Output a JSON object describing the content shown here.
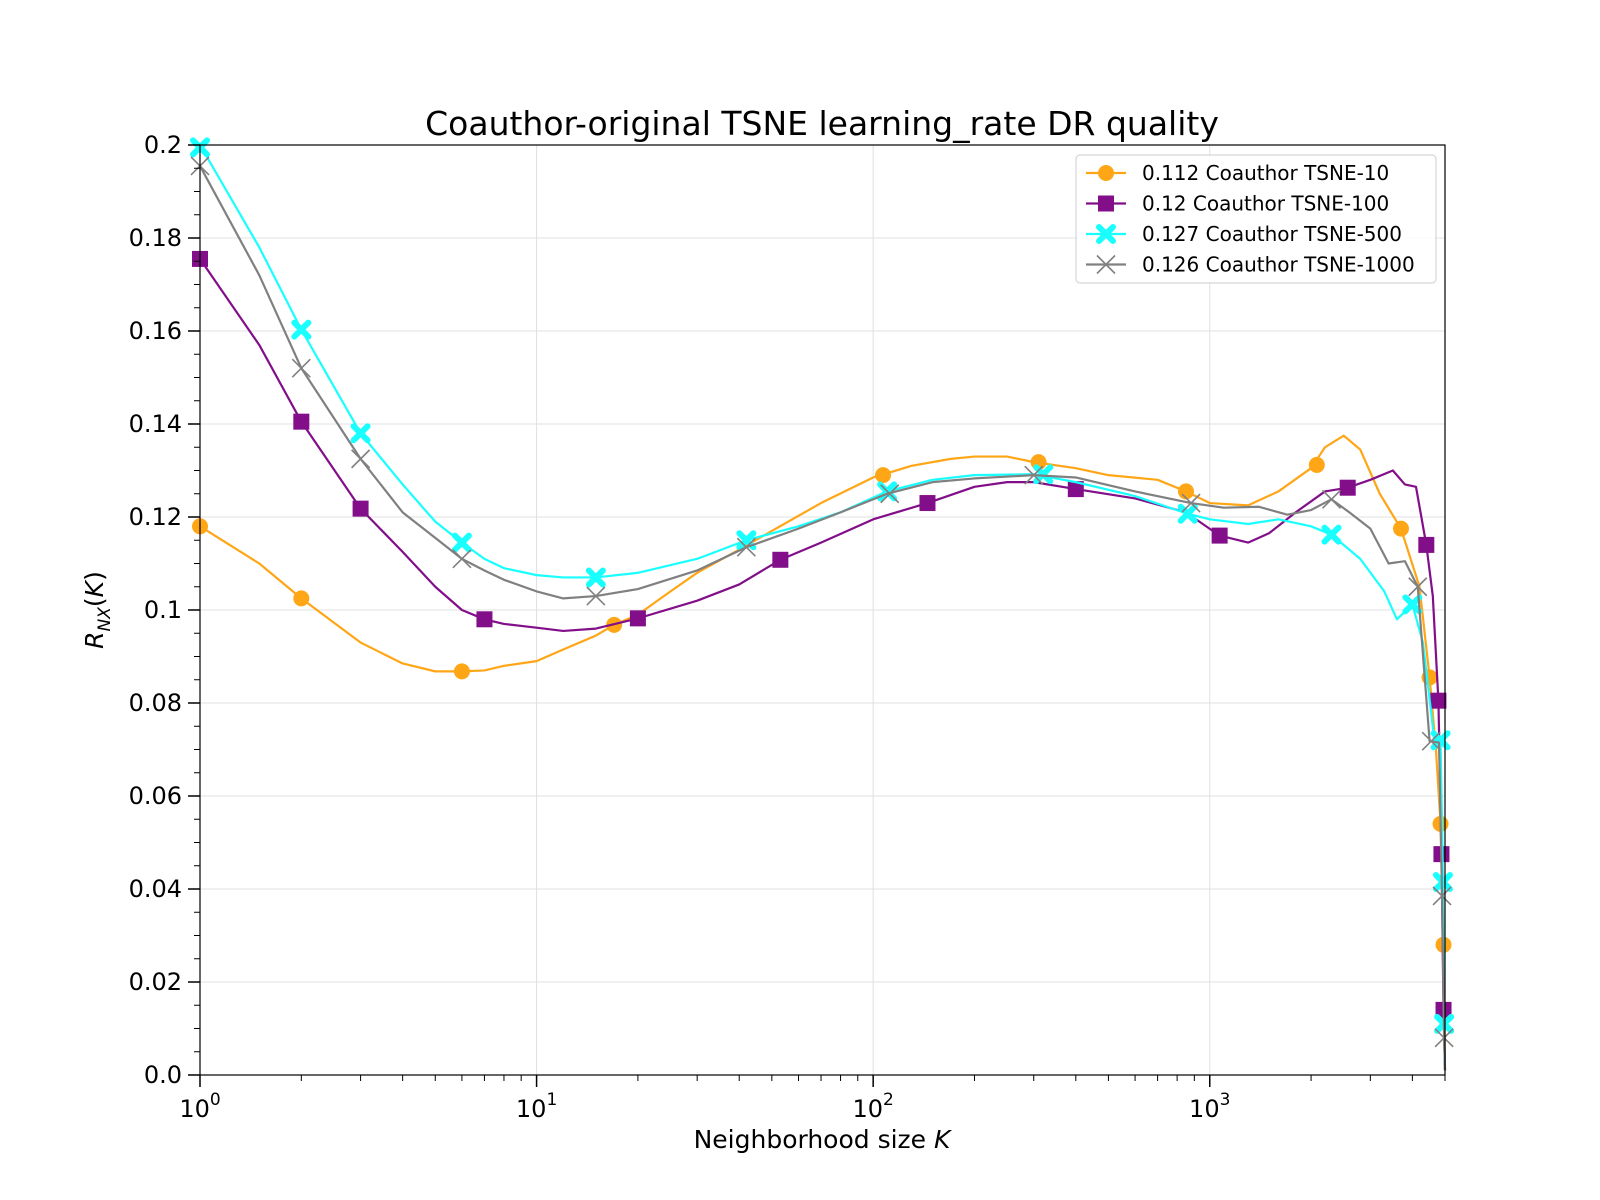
{
  "chart_data": {
    "type": "line",
    "title": "Coauthor-original TSNE learning_rate DR quality",
    "xlabel": "Neighborhood size K",
    "ylabel": "R_NX(K)",
    "x_scale": "log",
    "xlim": [
      1,
      5000
    ],
    "ylim": [
      0,
      0.2
    ],
    "x_ticks": [
      1,
      10,
      100,
      1000
    ],
    "x_tick_labels": [
      {
        "base": "10",
        "exp": "0"
      },
      {
        "base": "10",
        "exp": "1"
      },
      {
        "base": "10",
        "exp": "2"
      },
      {
        "base": "10",
        "exp": "3"
      }
    ],
    "y_ticks": [
      "0.0",
      "0.02",
      "0.04",
      "0.06",
      "0.08",
      "0.1",
      "0.12",
      "0.14",
      "0.16",
      "0.18",
      "0.2"
    ],
    "grid": true,
    "legend_position": "top-right",
    "series": [
      {
        "name": "0.112 Coauthor TSNE-10",
        "color": "#ffa616",
        "marker": "circle",
        "points": [
          [
            1,
            0.118
          ],
          [
            1.5,
            0.11
          ],
          [
            2,
            0.1025
          ],
          [
            3,
            0.093
          ],
          [
            4,
            0.0885
          ],
          [
            5,
            0.0868
          ],
          [
            6,
            0.0868
          ],
          [
            7,
            0.087
          ],
          [
            8,
            0.088
          ],
          [
            10,
            0.089
          ],
          [
            12,
            0.0915
          ],
          [
            15,
            0.0945
          ],
          [
            17,
            0.0968
          ],
          [
            20,
            0.099
          ],
          [
            25,
            0.104
          ],
          [
            30,
            0.108
          ],
          [
            40,
            0.113
          ],
          [
            50,
            0.117
          ],
          [
            70,
            0.123
          ],
          [
            100,
            0.1285
          ],
          [
            130,
            0.131
          ],
          [
            170,
            0.1325
          ],
          [
            200,
            0.133
          ],
          [
            250,
            0.133
          ],
          [
            300,
            0.1318
          ],
          [
            400,
            0.1305
          ],
          [
            500,
            0.129
          ],
          [
            700,
            0.128
          ],
          [
            850,
            0.1255
          ],
          [
            1000,
            0.123
          ],
          [
            1300,
            0.1225
          ],
          [
            1600,
            0.1255
          ],
          [
            2000,
            0.1305
          ],
          [
            2200,
            0.135
          ],
          [
            2500,
            0.1375
          ],
          [
            2800,
            0.1345
          ],
          [
            3200,
            0.125
          ],
          [
            3700,
            0.1175
          ],
          [
            4200,
            0.105
          ],
          [
            4500,
            0.0855
          ],
          [
            4700,
            0.07
          ],
          [
            4850,
            0.054
          ],
          [
            4950,
            0.028
          ],
          [
            5000,
            0.001
          ]
        ],
        "markers": [
          [
            1,
            0.118
          ],
          [
            2,
            0.1025
          ],
          [
            6,
            0.0868
          ],
          [
            17,
            0.0968
          ],
          [
            107,
            0.129
          ],
          [
            310,
            0.1318
          ],
          [
            850,
            0.1255
          ],
          [
            2080,
            0.1312
          ],
          [
            3700,
            0.1175
          ],
          [
            4500,
            0.0855
          ],
          [
            4850,
            0.054
          ],
          [
            4950,
            0.028
          ]
        ]
      },
      {
        "name": "0.12 Coauthor TSNE-100",
        "color": "#820f89",
        "marker": "square",
        "points": [
          [
            1,
            0.1755
          ],
          [
            1.5,
            0.157
          ],
          [
            2,
            0.1405
          ],
          [
            3,
            0.1218
          ],
          [
            4,
            0.1125
          ],
          [
            5,
            0.105
          ],
          [
            6,
            0.1
          ],
          [
            7,
            0.098
          ],
          [
            8,
            0.097
          ],
          [
            10,
            0.0962
          ],
          [
            12,
            0.0955
          ],
          [
            15,
            0.096
          ],
          [
            20,
            0.0982
          ],
          [
            30,
            0.102
          ],
          [
            40,
            0.1055
          ],
          [
            53,
            0.1108
          ],
          [
            70,
            0.1145
          ],
          [
            100,
            0.1195
          ],
          [
            145,
            0.123
          ],
          [
            200,
            0.1265
          ],
          [
            250,
            0.1275
          ],
          [
            300,
            0.1275
          ],
          [
            400,
            0.126
          ],
          [
            600,
            0.124
          ],
          [
            850,
            0.121
          ],
          [
            1070,
            0.116
          ],
          [
            1300,
            0.1145
          ],
          [
            1500,
            0.1165
          ],
          [
            1800,
            0.121
          ],
          [
            2200,
            0.1255
          ],
          [
            2570,
            0.1263
          ],
          [
            3000,
            0.128
          ],
          [
            3500,
            0.13
          ],
          [
            3800,
            0.127
          ],
          [
            4100,
            0.1265
          ],
          [
            4400,
            0.114
          ],
          [
            4600,
            0.103
          ],
          [
            4780,
            0.0805
          ],
          [
            4880,
            0.0475
          ],
          [
            4950,
            0.014
          ],
          [
            5000,
            0.001
          ]
        ],
        "markers": [
          [
            1,
            0.1755
          ],
          [
            2,
            0.1405
          ],
          [
            3,
            0.1218
          ],
          [
            7,
            0.098
          ],
          [
            20,
            0.0982
          ],
          [
            53,
            0.1108
          ],
          [
            145,
            0.123
          ],
          [
            400,
            0.126
          ],
          [
            1070,
            0.116
          ],
          [
            2570,
            0.1263
          ],
          [
            4400,
            0.114
          ],
          [
            4780,
            0.0805
          ],
          [
            4880,
            0.0475
          ],
          [
            4950,
            0.014
          ]
        ]
      },
      {
        "name": "0.127 Coauthor TSNE-500",
        "color": "#19ffff",
        "marker": "x-filled",
        "points": [
          [
            1,
            0.2
          ],
          [
            1.5,
            0.178
          ],
          [
            2,
            0.1603
          ],
          [
            3,
            0.138
          ],
          [
            4,
            0.127
          ],
          [
            5,
            0.119
          ],
          [
            6,
            0.1145
          ],
          [
            7,
            0.111
          ],
          [
            8,
            0.109
          ],
          [
            10,
            0.1075
          ],
          [
            12,
            0.107
          ],
          [
            15,
            0.107
          ],
          [
            20,
            0.108
          ],
          [
            30,
            0.111
          ],
          [
            42,
            0.115
          ],
          [
            60,
            0.118
          ],
          [
            80,
            0.121
          ],
          [
            110,
            0.1255
          ],
          [
            150,
            0.128
          ],
          [
            200,
            0.129
          ],
          [
            300,
            0.1292
          ],
          [
            400,
            0.1275
          ],
          [
            600,
            0.1245
          ],
          [
            860,
            0.1207
          ],
          [
            1000,
            0.1195
          ],
          [
            1300,
            0.1185
          ],
          [
            1600,
            0.1195
          ],
          [
            2000,
            0.118
          ],
          [
            2300,
            0.1162
          ],
          [
            2800,
            0.111
          ],
          [
            3300,
            0.104
          ],
          [
            3600,
            0.098
          ],
          [
            4000,
            0.1012
          ],
          [
            4300,
            0.093
          ],
          [
            4650,
            0.072
          ],
          [
            4850,
            0.072
          ],
          [
            4930,
            0.0415
          ],
          [
            4970,
            0.011
          ],
          [
            5000,
            0.001
          ]
        ],
        "markers": [
          [
            1,
            0.1995
          ],
          [
            2,
            0.1603
          ],
          [
            3,
            0.138
          ],
          [
            6,
            0.1145
          ],
          [
            15,
            0.107
          ],
          [
            42,
            0.115
          ],
          [
            110,
            0.1255
          ],
          [
            320,
            0.1292
          ],
          [
            860,
            0.1207
          ],
          [
            2300,
            0.1162
          ],
          [
            4000,
            0.1012
          ],
          [
            4850,
            0.072
          ],
          [
            4930,
            0.0415
          ],
          [
            4970,
            0.011
          ]
        ]
      },
      {
        "name": "0.126 Coauthor TSNE-1000",
        "color": "#808080",
        "marker": "x",
        "points": [
          [
            1,
            0.1955
          ],
          [
            1.5,
            0.172
          ],
          [
            2,
            0.152
          ],
          [
            3,
            0.1325
          ],
          [
            4,
            0.121
          ],
          [
            5,
            0.1155
          ],
          [
            6,
            0.111
          ],
          [
            7,
            0.1085
          ],
          [
            8,
            0.1065
          ],
          [
            10,
            0.104
          ],
          [
            12,
            0.1025
          ],
          [
            15,
            0.103
          ],
          [
            20,
            0.1045
          ],
          [
            30,
            0.1085
          ],
          [
            42,
            0.1135
          ],
          [
            60,
            0.1175
          ],
          [
            80,
            0.121
          ],
          [
            110,
            0.125
          ],
          [
            150,
            0.1275
          ],
          [
            200,
            0.1283
          ],
          [
            300,
            0.129
          ],
          [
            400,
            0.1285
          ],
          [
            600,
            0.1255
          ],
          [
            880,
            0.123
          ],
          [
            1100,
            0.122
          ],
          [
            1400,
            0.1222
          ],
          [
            1700,
            0.1205
          ],
          [
            2000,
            0.1215
          ],
          [
            2300,
            0.1238
          ],
          [
            2600,
            0.121
          ],
          [
            3000,
            0.1175
          ],
          [
            3400,
            0.11
          ],
          [
            3800,
            0.1105
          ],
          [
            4150,
            0.105
          ],
          [
            4500,
            0.0718
          ],
          [
            4800,
            0.0715
          ],
          [
            4900,
            0.0385
          ],
          [
            4970,
            0.008
          ],
          [
            5000,
            0.001
          ]
        ],
        "markers": [
          [
            1,
            0.1955
          ],
          [
            2,
            0.152
          ],
          [
            3,
            0.1325
          ],
          [
            6,
            0.111
          ],
          [
            15,
            0.103
          ],
          [
            42,
            0.1135
          ],
          [
            112,
            0.125
          ],
          [
            300,
            0.129
          ],
          [
            880,
            0.123
          ],
          [
            2300,
            0.1238
          ],
          [
            4150,
            0.105
          ],
          [
            4550,
            0.0718
          ],
          [
            4900,
            0.0385
          ],
          [
            4970,
            0.008
          ]
        ]
      }
    ]
  }
}
